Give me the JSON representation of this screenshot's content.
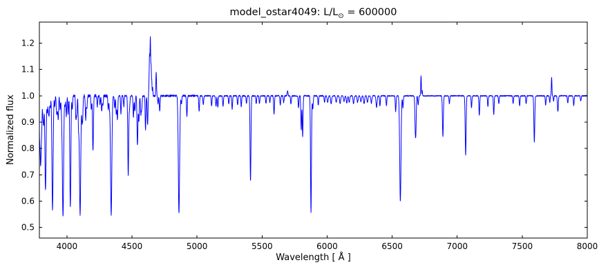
{
  "chart_data": {
    "type": "line",
    "title": "model_ostar4049: L/L⊙ = 600000",
    "title_parts": {
      "prefix": "model_ostar4049: L/L",
      "sub": "⊙",
      "suffix": " = 600000"
    },
    "xlabel": "Wavelength [ Å ]",
    "ylabel": "Normalized flux",
    "xlim": [
      3788,
      8000
    ],
    "ylim": [
      0.46,
      1.28
    ],
    "xticks": [
      4000,
      4500,
      5000,
      5500,
      6000,
      6500,
      7000,
      7500,
      8000
    ],
    "xtick_labels": [
      "4000",
      "4500",
      "5000",
      "5500",
      "6000",
      "6500",
      "7000",
      "7500",
      "8000"
    ],
    "yticks": [
      0.5,
      0.6,
      0.7,
      0.8,
      0.9,
      1.0,
      1.1,
      1.2
    ],
    "ytick_labels": [
      "0.5",
      "0.6",
      "0.7",
      "0.8",
      "0.9",
      "1.0",
      "1.1",
      "1.2"
    ],
    "line_color": "#0000ff",
    "background": "#ffffff",
    "continuum": 1.0,
    "features_format": [
      "center_wavelength_A",
      "flux_at_center",
      "sigma_A"
    ],
    "features": [
      [
        3790,
        0.86,
        3
      ],
      [
        3798,
        0.74,
        4
      ],
      [
        3806,
        0.9,
        3
      ],
      [
        3815,
        0.93,
        3
      ],
      [
        3821,
        0.9,
        3
      ],
      [
        3835,
        0.645,
        4.5
      ],
      [
        3849,
        0.94,
        3
      ],
      [
        3857,
        0.95,
        3
      ],
      [
        3863,
        0.93,
        3
      ],
      [
        3872,
        0.95,
        3
      ],
      [
        3889,
        0.565,
        4.5
      ],
      [
        3906,
        0.96,
        3
      ],
      [
        3920,
        0.94,
        3
      ],
      [
        3926,
        0.95,
        3
      ],
      [
        3933,
        0.91,
        3
      ],
      [
        3947,
        0.95,
        3
      ],
      [
        3958,
        0.94,
        3
      ],
      [
        3964,
        0.93,
        3
      ],
      [
        3970,
        0.55,
        4.5
      ],
      [
        3985,
        0.96,
        3
      ],
      [
        3995,
        0.92,
        3
      ],
      [
        4009,
        0.93,
        3
      ],
      [
        4026,
        0.575,
        4
      ],
      [
        4041,
        0.95,
        3
      ],
      [
        4069,
        0.91,
        3
      ],
      [
        4076,
        0.93,
        3
      ],
      [
        4089,
        0.89,
        3
      ],
      [
        4101,
        0.55,
        5
      ],
      [
        4116,
        0.92,
        3
      ],
      [
        4121,
        0.93,
        3
      ],
      [
        4144,
        0.91,
        3
      ],
      [
        4153,
        0.95,
        3
      ],
      [
        4187,
        0.95,
        3
      ],
      [
        4200,
        0.79,
        3.5
      ],
      [
        4233,
        0.96,
        3
      ],
      [
        4254,
        0.97,
        3
      ],
      [
        4267,
        0.94,
        3
      ],
      [
        4276,
        0.96,
        3
      ],
      [
        4317,
        0.95,
        3
      ],
      [
        4326,
        0.96,
        3
      ],
      [
        4340,
        0.545,
        5
      ],
      [
        4367,
        0.95,
        3
      ],
      [
        4379,
        0.93,
        3
      ],
      [
        4388,
        0.91,
        3
      ],
      [
        4415,
        0.93,
        3
      ],
      [
        4437,
        0.96,
        3
      ],
      [
        4471,
        0.7,
        3.5
      ],
      [
        4481,
        0.95,
        3
      ],
      [
        4511,
        0.92,
        3
      ],
      [
        4522,
        0.94,
        3
      ],
      [
        4542,
        0.81,
        3.5
      ],
      [
        4553,
        0.9,
        3
      ],
      [
        4568,
        0.93,
        3
      ],
      [
        4575,
        0.95,
        3
      ],
      [
        4604,
        0.87,
        3
      ],
      [
        4620,
        0.89,
        3
      ],
      [
        4631,
        1.05,
        2
      ],
      [
        4635,
        1.14,
        2.2
      ],
      [
        4641,
        1.22,
        2.4
      ],
      [
        4647,
        1.11,
        2.2
      ],
      [
        4652,
        1.05,
        2
      ],
      [
        4659,
        1.03,
        2
      ],
      [
        4686,
        1.09,
        2.6
      ],
      [
        4700,
        0.97,
        3
      ],
      [
        4713,
        0.94,
        3
      ],
      [
        4861,
        0.555,
        5
      ],
      [
        4880,
        0.97,
        3
      ],
      [
        4922,
        0.92,
        3
      ],
      [
        5016,
        0.94,
        3
      ],
      [
        5048,
        0.965,
        3
      ],
      [
        5112,
        0.96,
        3
      ],
      [
        5146,
        0.96,
        3
      ],
      [
        5160,
        0.955,
        3
      ],
      [
        5200,
        0.96,
        3
      ],
      [
        5244,
        0.97,
        3
      ],
      [
        5270,
        0.95,
        3
      ],
      [
        5312,
        0.965,
        3
      ],
      [
        5340,
        0.96,
        3
      ],
      [
        5380,
        0.97,
        3
      ],
      [
        5411,
        0.675,
        3.5
      ],
      [
        5455,
        0.97,
        3
      ],
      [
        5480,
        0.97,
        3
      ],
      [
        5530,
        0.97,
        3
      ],
      [
        5560,
        0.975,
        3
      ],
      [
        5592,
        0.93,
        3
      ],
      [
        5640,
        0.965,
        3
      ],
      [
        5666,
        0.975,
        3
      ],
      [
        5696,
        1.02,
        3
      ],
      [
        5722,
        0.97,
        3
      ],
      [
        5780,
        0.955,
        3
      ],
      [
        5801,
        0.87,
        3
      ],
      [
        5812,
        0.845,
        3
      ],
      [
        5876,
        0.555,
        3.5
      ],
      [
        5890,
        0.95,
        3
      ],
      [
        5932,
        0.965,
        3
      ],
      [
        5980,
        0.975,
        3
      ],
      [
        6004,
        0.975,
        4
      ],
      [
        6031,
        0.97,
        4
      ],
      [
        6070,
        0.975,
        4
      ],
      [
        6100,
        0.97,
        4
      ],
      [
        6130,
        0.978,
        4
      ],
      [
        6151,
        0.972,
        4
      ],
      [
        6170,
        0.975,
        4
      ],
      [
        6203,
        0.97,
        4
      ],
      [
        6234,
        0.975,
        4
      ],
      [
        6260,
        0.978,
        4
      ],
      [
        6284,
        0.97,
        4
      ],
      [
        6310,
        0.975,
        4
      ],
      [
        6340,
        0.972,
        4
      ],
      [
        6380,
        0.955,
        4
      ],
      [
        6406,
        0.962,
        3
      ],
      [
        6456,
        0.962,
        3
      ],
      [
        6527,
        0.94,
        3
      ],
      [
        6563,
        0.6,
        5
      ],
      [
        6583,
        0.955,
        3
      ],
      [
        6678,
        0.875,
        3.5
      ],
      [
        6683,
        0.91,
        3
      ],
      [
        6700,
        0.965,
        3
      ],
      [
        6722,
        1.075,
        2.4
      ],
      [
        6731,
        1.02,
        2
      ],
      [
        6890,
        0.845,
        3.5
      ],
      [
        6940,
        0.97,
        3
      ],
      [
        7065,
        0.775,
        3.5
      ],
      [
        7110,
        0.955,
        3
      ],
      [
        7170,
        0.925,
        3
      ],
      [
        7236,
        0.96,
        3
      ],
      [
        7281,
        0.93,
        3
      ],
      [
        7320,
        0.97,
        3
      ],
      [
        7430,
        0.97,
        3
      ],
      [
        7480,
        0.962,
        3
      ],
      [
        7530,
        0.97,
        3
      ],
      [
        7593,
        0.825,
        3.5
      ],
      [
        7680,
        0.965,
        3
      ],
      [
        7712,
        0.975,
        2.5
      ],
      [
        7726,
        1.07,
        2.4
      ],
      [
        7741,
        0.98,
        2.5
      ],
      [
        7774,
        0.94,
        3.5
      ],
      [
        7850,
        0.972,
        3
      ],
      [
        7896,
        0.962,
        3
      ],
      [
        7950,
        0.98,
        3
      ]
    ],
    "noise": {
      "seed": 7,
      "regions": [
        [
          3788,
          4350,
          0.0055
        ],
        [
          4350,
          5000,
          0.0035
        ],
        [
          5000,
          6000,
          0.0022
        ],
        [
          6000,
          8001,
          0.0018
        ]
      ]
    }
  }
}
